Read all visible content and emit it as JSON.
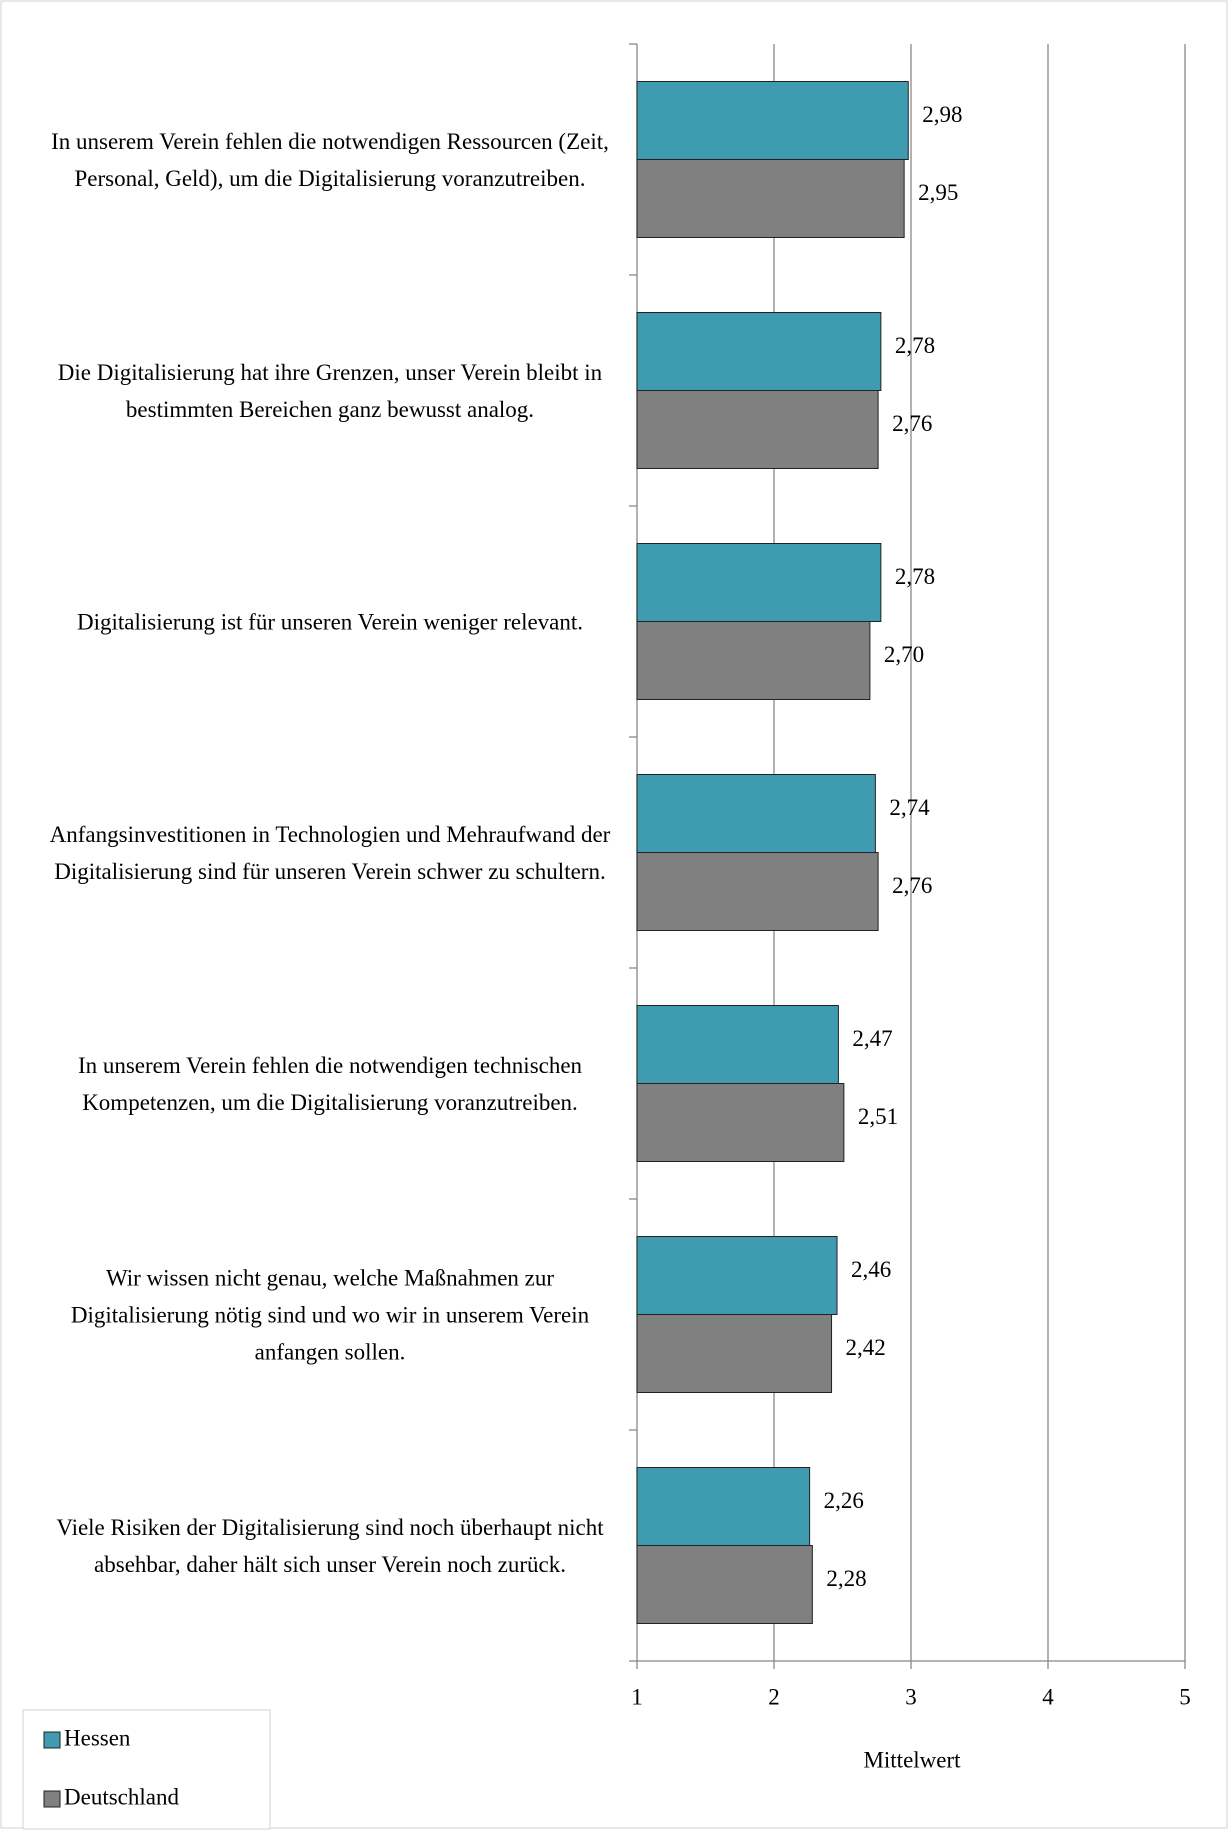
{
  "chart_data": {
    "type": "hbar",
    "categories": [
      "In unserem Verein fehlen die notwendigen Ressourcen (Zeit, Personal, Geld), um die Digitalisierung voranzutreiben.",
      "Die Digitalisierung hat ihre Grenzen, unser Verein bleibt in bestimmten Bereichen ganz bewusst analog.",
      "Digitalisierung ist für unseren Verein weniger relevant.",
      "Anfangsinvestitionen in Technologien und Mehraufwand der Digitalisierung sind für unseren Verein schwer zu schultern.",
      "In unserem Verein fehlen die notwendigen technischen Kompetenzen, um die Digitalisierung voranzutreiben.",
      "Wir wissen nicht genau, welche Maßnahmen zur Digitalisierung nötig sind und wo wir in unserem Verein anfangen sollen.",
      "Viele Risiken der Digitalisierung sind noch überhaupt nicht absehbar, daher hält sich unser Verein noch zurück."
    ],
    "series": [
      {
        "name": "Hessen",
        "color": "#3e9bb0",
        "values": [
          2.98,
          2.78,
          2.78,
          2.74,
          2.47,
          2.46,
          2.26
        ],
        "value_labels": [
          "2,98",
          "2,78",
          "2,78",
          "2,74",
          "2,47",
          "2,46",
          "2,26"
        ]
      },
      {
        "name": "Deutschland",
        "color": "#808080",
        "values": [
          2.95,
          2.76,
          2.7,
          2.76,
          2.51,
          2.42,
          2.28
        ],
        "value_labels": [
          "2,95",
          "2,76",
          "2,70",
          "2,76",
          "2,51",
          "2,42",
          "2,28"
        ]
      }
    ],
    "xlabel": "Mittelwert",
    "xlim": [
      1,
      5
    ],
    "xticks": [
      1,
      2,
      3,
      4,
      5
    ],
    "grid": true,
    "legend": "lower left"
  }
}
